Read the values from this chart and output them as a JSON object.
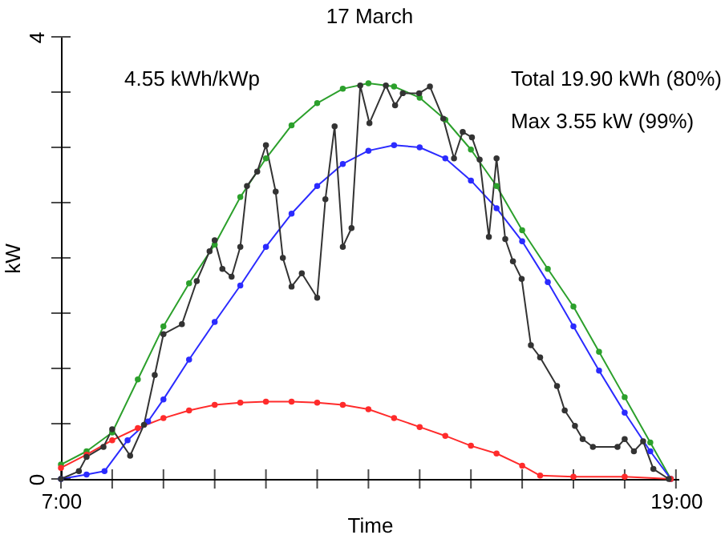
{
  "chart_data": {
    "type": "line",
    "title": "17 March",
    "xlabel": "Time",
    "ylabel": "kW",
    "annotations": [
      "4.55 kWh/kWp",
      "Total 19.90 kWh (80%)",
      "Max 3.55 kW (99%)"
    ],
    "xlim": [
      7,
      19.05
    ],
    "xticks": [
      {
        "value": 7,
        "label": "7:00"
      },
      {
        "value": 8,
        "label": null
      },
      {
        "value": 9,
        "label": null
      },
      {
        "value": 10,
        "label": null
      },
      {
        "value": 11,
        "label": null
      },
      {
        "value": 12,
        "label": null
      },
      {
        "value": 13,
        "label": null
      },
      {
        "value": 14,
        "label": null
      },
      {
        "value": 15,
        "label": null
      },
      {
        "value": 16,
        "label": null
      },
      {
        "value": 17,
        "label": null
      },
      {
        "value": 18,
        "label": null
      },
      {
        "value": 19,
        "label": "19:00"
      }
    ],
    "ylim": [
      0,
      4
    ],
    "yticks": [
      0,
      {
        "value": 0.5,
        "label": null
      },
      {
        "value": 1,
        "label": null
      },
      {
        "value": 1.5,
        "label": null
      },
      {
        "value": 2,
        "label": null
      },
      {
        "value": 2.5,
        "label": null
      },
      {
        "value": 3,
        "label": null
      },
      {
        "value": 3.5,
        "label": null
      },
      4
    ],
    "grid": false,
    "legend": false,
    "marker": "circle",
    "line_style": "solid",
    "series": [
      {
        "color": "#2ca02c",
        "x": [
          7.0,
          7.5,
          8.0,
          8.5,
          9.0,
          9.5,
          10.0,
          10.5,
          11.0,
          11.5,
          12.0,
          12.5,
          13.0,
          13.5,
          14.0,
          14.5,
          15.0,
          15.5,
          16.0,
          16.5,
          17.0,
          17.5,
          18.0,
          18.5,
          18.9
        ],
        "values": [
          0.13,
          0.25,
          0.42,
          0.9,
          1.38,
          1.77,
          2.12,
          2.55,
          2.9,
          3.2,
          3.4,
          3.53,
          3.58,
          3.55,
          3.45,
          3.25,
          2.98,
          2.65,
          2.25,
          1.9,
          1.56,
          1.15,
          0.74,
          0.33,
          0.0
        ]
      },
      {
        "color": "#2b2bff",
        "x": [
          7.0,
          7.5,
          7.85,
          8.3,
          8.7,
          9.0,
          9.5,
          10.0,
          10.5,
          11.0,
          11.5,
          12.0,
          12.5,
          13.0,
          13.5,
          14.0,
          14.5,
          15.0,
          15.5,
          16.0,
          16.5,
          17.0,
          17.5,
          18.0,
          18.5,
          18.9
        ],
        "values": [
          0.0,
          0.04,
          0.07,
          0.35,
          0.52,
          0.72,
          1.08,
          1.42,
          1.75,
          2.1,
          2.4,
          2.65,
          2.85,
          2.97,
          3.02,
          3.0,
          2.9,
          2.7,
          2.45,
          2.15,
          1.78,
          1.38,
          0.98,
          0.6,
          0.25,
          0.0
        ]
      },
      {
        "color": "#ff2b2b",
        "x": [
          7.0,
          7.5,
          8.0,
          8.5,
          9.0,
          9.5,
          10.0,
          10.5,
          11.0,
          11.5,
          12.0,
          12.5,
          13.0,
          13.5,
          14.0,
          14.5,
          15.0,
          15.5,
          16.0,
          16.35,
          17.0,
          18.0,
          18.9
        ],
        "values": [
          0.1,
          0.22,
          0.35,
          0.46,
          0.55,
          0.62,
          0.67,
          0.69,
          0.7,
          0.7,
          0.69,
          0.67,
          0.63,
          0.55,
          0.47,
          0.39,
          0.3,
          0.23,
          0.12,
          0.03,
          0.02,
          0.02,
          0.0
        ]
      },
      {
        "color": "#333333",
        "x": [
          7.0,
          7.35,
          7.5,
          7.83,
          8.0,
          8.35,
          8.62,
          8.83,
          9.0,
          9.36,
          9.65,
          9.9,
          10.0,
          10.15,
          10.33,
          10.5,
          10.63,
          10.83,
          11.0,
          11.19,
          11.33,
          11.5,
          11.7,
          12.0,
          12.16,
          12.34,
          12.5,
          12.67,
          12.84,
          13.02,
          13.34,
          13.52,
          13.67,
          13.99,
          14.2,
          14.46,
          14.67,
          14.84,
          15.02,
          15.17,
          15.35,
          15.5,
          15.67,
          15.82,
          15.99,
          16.17,
          16.35,
          16.68,
          16.83,
          17.03,
          17.18,
          17.38,
          17.86,
          18.0,
          18.18,
          18.36,
          18.56,
          18.86
        ],
        "values": [
          0.0,
          0.07,
          0.2,
          0.29,
          0.45,
          0.21,
          0.49,
          0.94,
          1.31,
          1.4,
          1.79,
          2.06,
          2.16,
          1.9,
          1.83,
          2.1,
          2.65,
          2.78,
          3.02,
          2.6,
          2.0,
          1.74,
          1.86,
          1.64,
          2.53,
          3.19,
          2.1,
          2.27,
          3.56,
          3.22,
          3.56,
          3.38,
          3.49,
          3.49,
          3.55,
          3.26,
          2.9,
          3.14,
          3.09,
          2.89,
          2.19,
          2.9,
          2.17,
          1.97,
          1.81,
          1.21,
          1.1,
          0.84,
          0.62,
          0.48,
          0.36,
          0.29,
          0.29,
          0.36,
          0.25,
          0.34,
          0.09,
          0.0
        ]
      }
    ]
  }
}
